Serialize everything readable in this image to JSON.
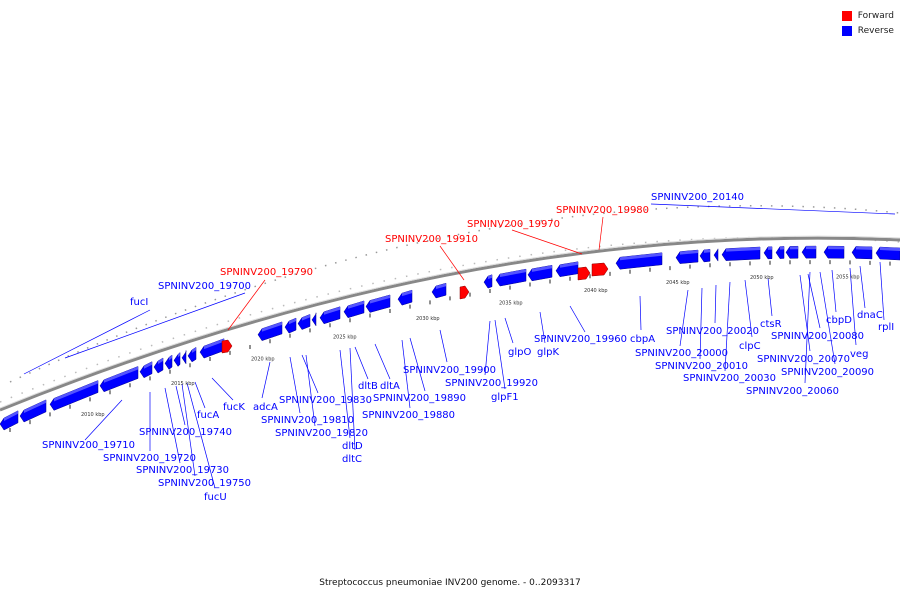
{
  "legend": {
    "forward_label": "Forward",
    "reverse_label": "Reverse",
    "forward_color": "#ff0000",
    "reverse_color": "#0000ff"
  },
  "caption": "Streptococcus pneumoniae INV200 genome. - 0..2093317",
  "ticks": [
    "2010 kbp",
    "2015 kbp",
    "2020 kbp",
    "2025 kbp",
    "2030 kbp",
    "2035 kbp",
    "2040 kbp",
    "2045 kbp",
    "2050 kbp",
    "2055 kbp"
  ],
  "forward_genes": [
    "SPNINV200_19790",
    "SPNINV200_19910",
    "SPNINV200_19970",
    "SPNINV200_19980"
  ],
  "outer_track_labels": [
    "SPNINV200_20140",
    "SPNINV200_19700",
    "fucI"
  ],
  "reverse_labels": [
    "SPNINV200_19710",
    "SPNINV200_19720",
    "SPNINV200_19730",
    "SPNINV200_19740",
    "SPNINV200_19750",
    "fucU",
    "fucA",
    "fucK",
    "adcA",
    "SPNINV200_19810",
    "SPNINV200_19820",
    "SPNINV200_19830",
    "dltD",
    "dltC",
    "dltB",
    "dltA",
    "SPNINV200_19880",
    "SPNINV200_19890",
    "SPNINV200_19900",
    "SPNINV200_19920",
    "glpF1",
    "glpO",
    "glpK",
    "SPNINV200_19960",
    "cbpA",
    "SPNINV200_20000",
    "SPNINV200_20010",
    "SPNINV200_20020",
    "SPNINV200_20030",
    "clpC",
    "ctsR",
    "SPNINV200_20060",
    "SPNINV200_20070",
    "SPNINV200_20080",
    "SPNINV200_20090",
    "cbpD",
    "veg",
    "dnaC",
    "rplI"
  ]
}
